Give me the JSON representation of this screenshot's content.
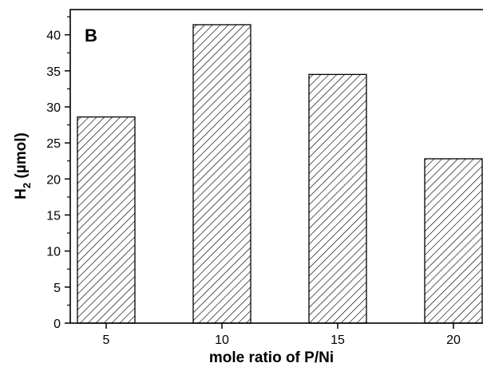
{
  "chart_data": {
    "type": "bar",
    "panel_label": "B",
    "categories": [
      "5",
      "10",
      "15",
      "20"
    ],
    "values": [
      28.6,
      41.4,
      34.5,
      22.8
    ],
    "xlabel": "mole ratio of P/Ni",
    "ylabel": {
      "main": "H",
      "subscript": "2",
      "unit": " (µmol)"
    },
    "ylim": [
      0,
      43.5
    ],
    "yticks": [
      0,
      5,
      10,
      15,
      20,
      25,
      30,
      35,
      40
    ],
    "y_minor_step": 2.5,
    "bar_pattern": "diagonal-hatch",
    "bar_color": "#000000",
    "grid": false,
    "legend": "none"
  }
}
